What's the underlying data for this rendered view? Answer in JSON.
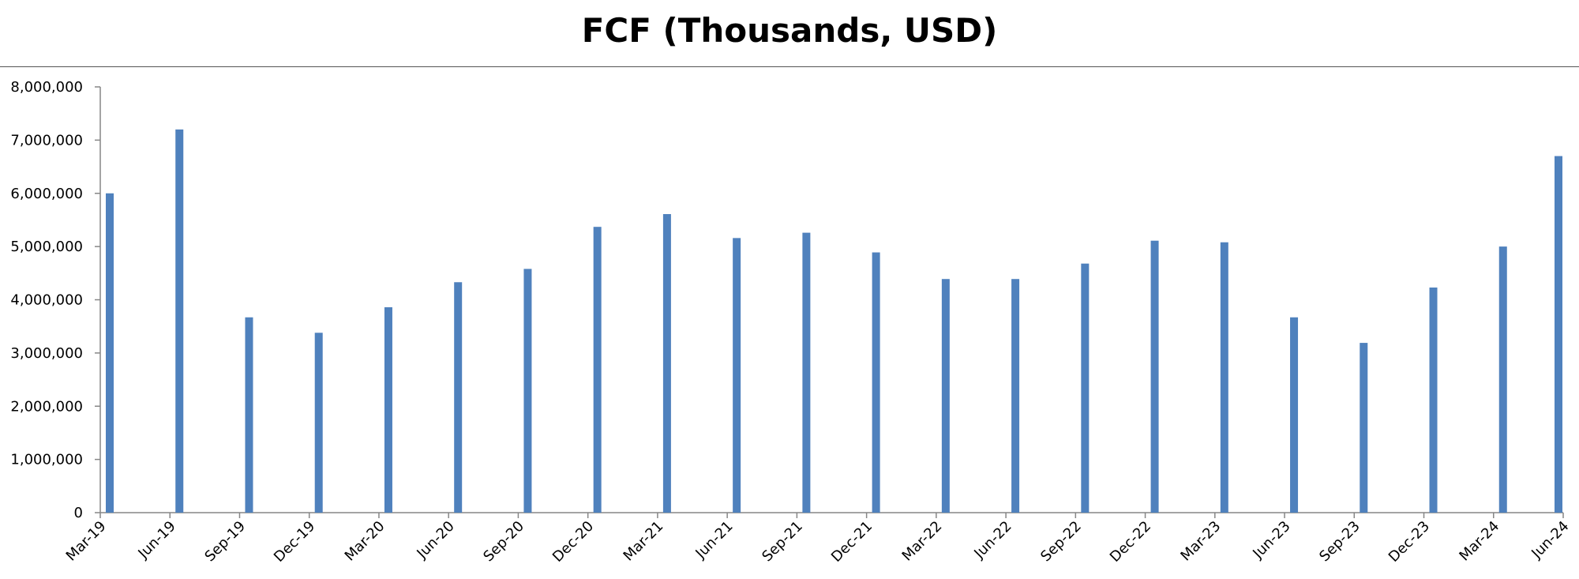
{
  "chart_data": {
    "type": "bar",
    "title": "FCF (Thousands, USD)",
    "xlabel": "",
    "ylabel": "",
    "ylim": [
      0,
      8000000
    ],
    "yticks": [
      "0",
      "1,000,000",
      "2,000,000",
      "3,000,000",
      "4,000,000",
      "5,000,000",
      "6,000,000",
      "7,000,000",
      "8,000,000"
    ],
    "categories": [
      "Mar-19",
      "Jun-19",
      "Sep-19",
      "Dec-19",
      "Mar-20",
      "Jun-20",
      "Sep-20",
      "Dec-20",
      "Mar-21",
      "Jun-21",
      "Sep-21",
      "Dec-21",
      "Mar-22",
      "Jun-22",
      "Sep-22",
      "Dec-22",
      "Mar-23",
      "Jun-23",
      "Sep-23",
      "Dec-23",
      "Mar-24",
      "Jun-24"
    ],
    "values": [
      6000000,
      7200000,
      3670000,
      3380000,
      3860000,
      4330000,
      4580000,
      5370000,
      5610000,
      5160000,
      5260000,
      4890000,
      4390000,
      4390000,
      4680000,
      5110000,
      5080000,
      3670000,
      3190000,
      4230000,
      5000000,
      6700000
    ],
    "bar_color": "#4f81bd",
    "grid": false,
    "legend": "none"
  }
}
